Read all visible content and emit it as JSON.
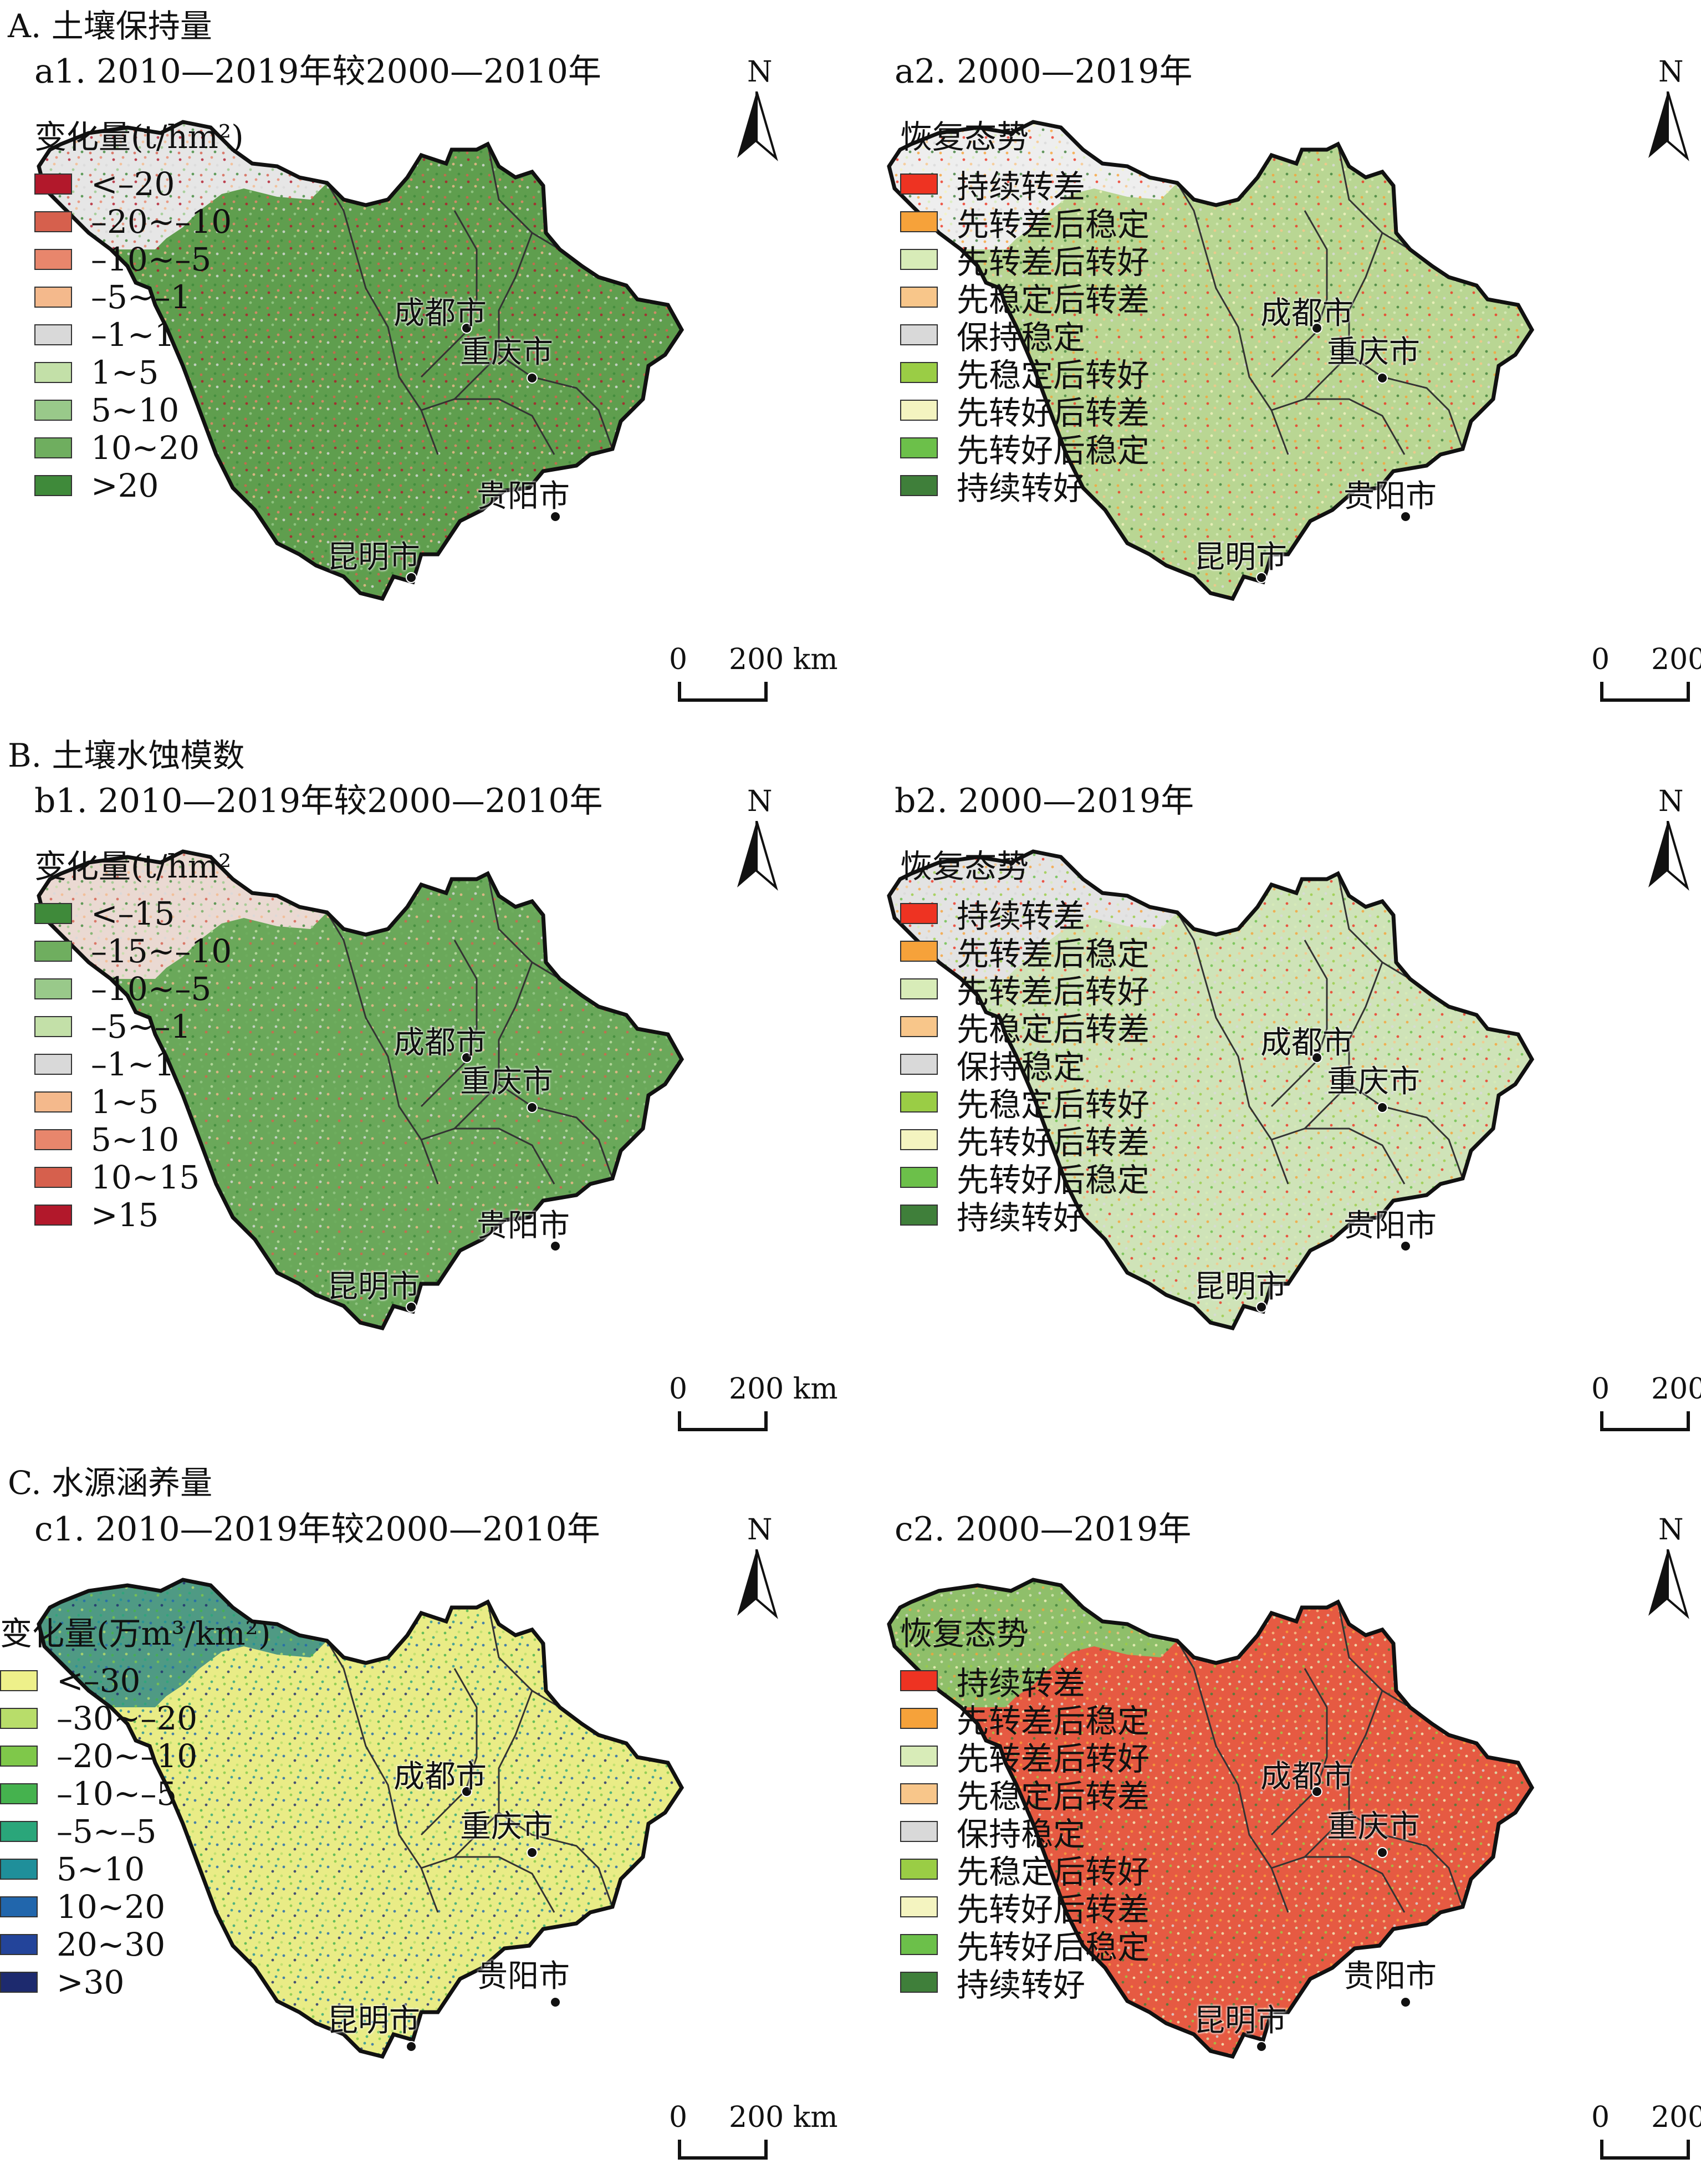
{
  "sections": [
    {
      "title": "A. 土壤保持量",
      "panels": [
        {
          "title": "a1. 2010—2019年较2000—2010年",
          "legend_title": "变化量(t/hm²)",
          "legend": [
            {
              "label": "<–20",
              "color": "#b2182b"
            },
            {
              "label": "–20~–10",
              "color": "#d6604d"
            },
            {
              "label": "–10~–5",
              "color": "#e8866c"
            },
            {
              "label": "–5~–1",
              "color": "#f4b98c"
            },
            {
              "label": "–1~1",
              "color": "#d9d9d9"
            },
            {
              "label": "1~5",
              "color": "#c3e0a8"
            },
            {
              "label": "5~10",
              "color": "#99c98a"
            },
            {
              "label": "10~20",
              "color": "#6fae5f"
            },
            {
              "label": ">20",
              "color": "#3f8a3a"
            }
          ],
          "fill_main": "#5f9e4e",
          "fill_west": "#e6e6e6"
        },
        {
          "title": "a2. 2000—2019年",
          "legend_title": "恢复态势",
          "legend": [
            {
              "label": "持续转差",
              "color": "#ee3322"
            },
            {
              "label": "先转差后稳定",
              "color": "#f6a23a"
            },
            {
              "label": "先转差后转好",
              "color": "#d8ecb8"
            },
            {
              "label": "先稳定后转差",
              "color": "#f8c68a"
            },
            {
              "label": "保持稳定",
              "color": "#d9d9d9"
            },
            {
              "label": "先稳定后转好",
              "color": "#9acd45"
            },
            {
              "label": "先转好后转差",
              "color": "#f4f4c0"
            },
            {
              "label": "先转好后稳定",
              "color": "#6cc04a"
            },
            {
              "label": "持续转好",
              "color": "#3f7f3a"
            }
          ],
          "fill_main": "#b9d693",
          "fill_west": "#eeeeee"
        }
      ]
    },
    {
      "title": "B. 土壤水蚀模数",
      "panels": [
        {
          "title": "b1. 2010—2019年较2000—2010年",
          "legend_title": "变化量(t/hm²",
          "legend": [
            {
              "label": "<–15",
              "color": "#3f8a3a"
            },
            {
              "label": "–15~–10",
              "color": "#6fae5f"
            },
            {
              "label": "–10~–5",
              "color": "#99c98a"
            },
            {
              "label": "–5~–1",
              "color": "#c3e0a8"
            },
            {
              "label": "–1~1",
              "color": "#d9d9d9"
            },
            {
              "label": "1~5",
              "color": "#f4b98c"
            },
            {
              "label": "5~10",
              "color": "#e8866c"
            },
            {
              "label": "10~15",
              "color": "#d6604d"
            },
            {
              "label": ">15",
              "color": "#b2182b"
            }
          ],
          "fill_main": "#6aa85a",
          "fill_west": "#ead9d2"
        },
        {
          "title": "b2. 2000—2019年",
          "legend_title": "恢复态势",
          "legend": [
            {
              "label": "持续转差",
              "color": "#ee3322"
            },
            {
              "label": "先转差后稳定",
              "color": "#f6a23a"
            },
            {
              "label": "先转差后转好",
              "color": "#d8ecb8"
            },
            {
              "label": "先稳定后转差",
              "color": "#f8c68a"
            },
            {
              "label": "保持稳定",
              "color": "#d9d9d9"
            },
            {
              "label": "先稳定后转好",
              "color": "#9acd45"
            },
            {
              "label": "先转好后转差",
              "color": "#f4f4c0"
            },
            {
              "label": "先转好后稳定",
              "color": "#6cc04a"
            },
            {
              "label": "持续转好",
              "color": "#3f7f3a"
            }
          ],
          "fill_main": "#cfe3b8",
          "fill_west": "#e3e3e3"
        }
      ]
    },
    {
      "title": "C. 水源涵养量",
      "panels": [
        {
          "title": "c1. 2010—2019年较2000—2010年",
          "legend_title": "变化量(万m³/km²)",
          "legend": [
            {
              "label": "<–30",
              "color": "#eef08a"
            },
            {
              "label": "–30~–20",
              "color": "#b8dd6a"
            },
            {
              "label": "–20~–10",
              "color": "#7fc84a"
            },
            {
              "label": "–10~–5",
              "color": "#45b24e"
            },
            {
              "label": "–5~–5",
              "color": "#2aa67a"
            },
            {
              "label": "5~10",
              "color": "#1f8f9a"
            },
            {
              "label": "10~20",
              "color": "#2166ac"
            },
            {
              "label": "20~30",
              "color": "#23449a"
            },
            {
              "label": ">30",
              "color": "#1d2a6e"
            }
          ],
          "fill_main": "#e9ec86",
          "fill_west": "#4f9a84"
        },
        {
          "title": "c2. 2000—2019年",
          "legend_title": "恢复态势",
          "legend": [
            {
              "label": "持续转差",
              "color": "#ee3322"
            },
            {
              "label": "先转差后稳定",
              "color": "#f6a23a"
            },
            {
              "label": "先转差后转好",
              "color": "#d8ecb8"
            },
            {
              "label": "先稳定后转差",
              "color": "#f8c68a"
            },
            {
              "label": "保持稳定",
              "color": "#d9d9d9"
            },
            {
              "label": "先稳定后转好",
              "color": "#9acd45"
            },
            {
              "label": "先转好后转差",
              "color": "#f4f4c0"
            },
            {
              "label": "先转好后稳定",
              "color": "#6cc04a"
            },
            {
              "label": "持续转好",
              "color": "#3f7f3a"
            }
          ],
          "fill_main": "#e65a42",
          "fill_west": "#8fbf6a"
        }
      ]
    }
  ],
  "cities": {
    "chengdu": "成都市",
    "chongqing": "重庆市",
    "guiyang": "贵阳市",
    "kunming": "昆明市"
  },
  "north_label": "N",
  "scale": {
    "zero": "0",
    "distance": "200 km"
  }
}
